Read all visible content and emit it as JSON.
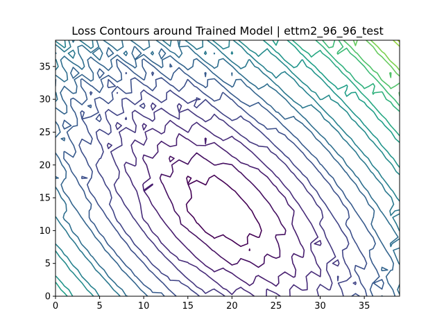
{
  "chart_data": {
    "type": "contour",
    "title": "Loss Contours around Trained Model | ettm2_96_96_test",
    "xlabel": "",
    "ylabel": "",
    "xlim": [
      0,
      39
    ],
    "ylim": [
      0,
      39
    ],
    "x_ticks": [
      0,
      5,
      10,
      15,
      20,
      25,
      30,
      35
    ],
    "y_ticks": [
      0,
      5,
      10,
      15,
      20,
      25,
      30,
      35
    ],
    "grid": false,
    "colormap": "viridis",
    "colors": {
      "low": "#440154",
      "mid": "#21918c",
      "high": "#fde725"
    },
    "minimum": {
      "x": 19,
      "y": 13
    },
    "surface": {
      "center_x": 19,
      "center_y": 13,
      "a": 0.0145,
      "b": 0.0095,
      "c": 0.0115,
      "base": 0.72
    },
    "levels": [
      0.9,
      1.2,
      1.55,
      1.95,
      2.4,
      2.9,
      3.45,
      4.05,
      4.7,
      5.4,
      6.15,
      6.95,
      7.8,
      8.7,
      9.65,
      10.65,
      11.7,
      12.8,
      13.95,
      15.15,
      16.4,
      17.7,
      19.05,
      20.45,
      21.9,
      23.4
    ]
  }
}
